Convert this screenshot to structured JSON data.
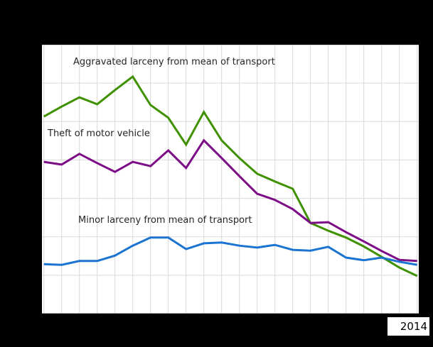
{
  "canvas": {
    "background": "#000000",
    "plot_background": "#ffffff",
    "grid_color": "#d9d9d9",
    "axis_color": "#a8a8a8",
    "label_color": "#262626"
  },
  "annotations": {
    "aggravated_label": "Aggravated larceny from mean of transport",
    "theft_label": "Theft of motor vehicle",
    "minor_label": "Minor larceny from mean of transport"
  },
  "x_axis": {
    "last_tick_label": "2014"
  },
  "chart_data": {
    "type": "line",
    "x": [
      1993,
      1994,
      1995,
      1996,
      1997,
      1998,
      1999,
      2000,
      2001,
      2002,
      2003,
      2004,
      2005,
      2006,
      2007,
      2008,
      2009,
      2010,
      2011,
      2012,
      2013,
      2014
    ],
    "series": [
      {
        "name": "Aggravated larceny from mean of transport",
        "color": "#3f9100",
        "values": [
          51.3,
          53.9,
          56.3,
          54.5,
          58.2,
          61.7,
          54.3,
          51.0,
          44.0,
          52.5,
          45.1,
          40.5,
          36.4,
          34.4,
          32.5,
          23.6,
          21.6,
          19.8,
          17.5,
          14.8,
          12.0,
          9.8
        ]
      },
      {
        "name": "Theft of motor vehicle",
        "color": "#7d0d86",
        "values": [
          39.5,
          38.8,
          41.6,
          39.2,
          36.9,
          39.5,
          38.4,
          42.5,
          37.9,
          45.1,
          40.5,
          35.8,
          31.2,
          29.6,
          27.2,
          23.6,
          23.8,
          21.2,
          18.8,
          16.3,
          14.0,
          13.7
        ]
      },
      {
        "name": "Minor larceny from mean of transport",
        "color": "#1b74d1",
        "values": [
          12.9,
          12.7,
          13.7,
          13.7,
          15.1,
          17.7,
          19.8,
          19.8,
          16.8,
          18.3,
          18.5,
          17.7,
          17.2,
          17.9,
          16.6,
          16.4,
          17.4,
          14.6,
          13.9,
          14.6,
          13.5,
          12.7
        ]
      }
    ],
    "ylim": [
      0,
      70
    ],
    "y_gridline_step": 10,
    "x_gridlines_per_point": true,
    "grid": true,
    "legend_position": "inline-labels",
    "title": "",
    "xlabel": "",
    "ylabel": ""
  }
}
